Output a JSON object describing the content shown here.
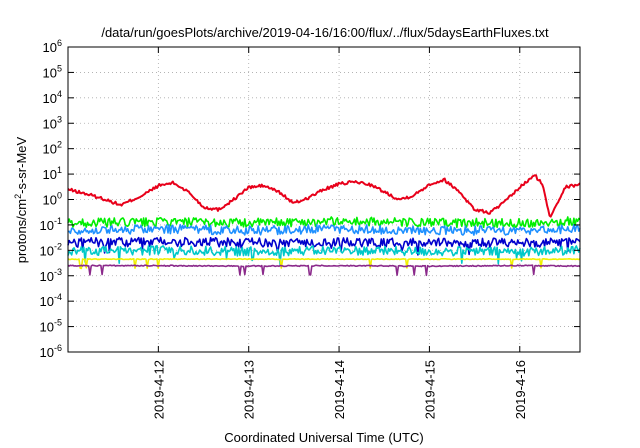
{
  "chart_data": {
    "type": "line",
    "title": "/data/run/goesPlots/archive/2019-04-16/16:00/flux/../flux/5daysEarthFluxes.txt",
    "xlabel": "Coordinated Universal Time (UTC)",
    "ylabel": {
      "pre": "protons/cm",
      "sup": "2",
      "post": "-s-sr-MeV"
    },
    "xlim": [
      "2019-04-11 00:00",
      "2019-04-16 16:00"
    ],
    "x_ticks": [
      "2019-4-12",
      "2019-4-13",
      "2019-4-14",
      "2019-4-15",
      "2019-4-16"
    ],
    "y_scale": "log",
    "ylim": [
      1e-06,
      1000000.0
    ],
    "y_tick_exponents": [
      -6,
      -5,
      -4,
      -3,
      -2,
      -1,
      0,
      1,
      2,
      3,
      4,
      5,
      6
    ],
    "y_tick_base": "10",
    "grid": true,
    "series": [
      {
        "color": "#e8001a",
        "x": [
          "04-11 00:00",
          "04-11 06:00",
          "04-11 10:00",
          "04-11 14:00",
          "04-11 20:00",
          "04-12 00:00",
          "04-12 04:00",
          "04-12 08:00",
          "04-12 12:00",
          "04-12 16:00",
          "04-12 20:00",
          "04-13 00:00",
          "04-13 04:00",
          "04-13 08:00",
          "04-13 12:00",
          "04-13 16:00",
          "04-13 20:00",
          "04-14 00:00",
          "04-14 04:00",
          "04-14 08:00",
          "04-14 12:00",
          "04-14 16:00",
          "04-14 20:00",
          "04-15 00:00",
          "04-15 04:00",
          "04-15 08:00",
          "04-15 12:00",
          "04-15 16:00",
          "04-15 20:00",
          "04-16 00:00",
          "04-16 04:00",
          "04-16 06:00",
          "04-16 08:00",
          "04-16 12:00",
          "04-16 16:00"
        ],
        "y": [
          2.5,
          1.5,
          1.0,
          0.6,
          1.5,
          3.5,
          4.5,
          2.0,
          0.5,
          0.4,
          1.0,
          3.0,
          3.5,
          2.0,
          0.7,
          1.2,
          2.5,
          4.0,
          5.0,
          4.0,
          2.0,
          1.0,
          1.5,
          4.0,
          6.0,
          2.0,
          0.4,
          0.3,
          0.8,
          3.0,
          9.0,
          4.0,
          0.2,
          3.0,
          4.0
        ]
      },
      {
        "color": "#00ee00",
        "x": [
          "04-11 00:00",
          "04-12 00:00",
          "04-13 00:00",
          "04-14 00:00",
          "04-15 00:00",
          "04-16 00:00",
          "04-16 16:00"
        ],
        "y": [
          0.12,
          0.13,
          0.12,
          0.14,
          0.12,
          0.12,
          0.14
        ]
      },
      {
        "color": "#1e90ff",
        "x": [
          "04-11 00:00",
          "04-12 00:00",
          "04-13 00:00",
          "04-14 00:00",
          "04-15 00:00",
          "04-16 00:00",
          "04-16 16:00"
        ],
        "y": [
          0.06,
          0.07,
          0.06,
          0.07,
          0.06,
          0.06,
          0.07
        ]
      },
      {
        "color": "#0000cc",
        "x": [
          "04-11 00:00",
          "04-12 00:00",
          "04-13 00:00",
          "04-14 00:00",
          "04-15 00:00",
          "04-16 00:00",
          "04-16 16:00"
        ],
        "y": [
          0.02,
          0.022,
          0.02,
          0.021,
          0.02,
          0.02,
          0.021
        ]
      },
      {
        "color": "#00c8c8",
        "x": [
          "04-11 00:00",
          "04-12 00:00",
          "04-13 00:00",
          "04-14 00:00",
          "04-15 00:00",
          "04-16 00:00",
          "04-16 16:00"
        ],
        "y": [
          0.009,
          0.01,
          0.009,
          0.01,
          0.009,
          0.009,
          0.01
        ]
      },
      {
        "color": "#f0f000",
        "x": [
          "04-11 00:00",
          "04-12 00:00",
          "04-13 00:00",
          "04-14 00:00",
          "04-15 00:00",
          "04-16 00:00",
          "04-16 16:00"
        ],
        "y": [
          0.0045,
          0.0045,
          0.0045,
          0.0045,
          0.0045,
          0.0045,
          0.0045
        ]
      },
      {
        "color": "#8b2a8b",
        "x": [
          "04-11 00:00",
          "04-12 00:00",
          "04-13 00:00",
          "04-14 00:00",
          "04-15 00:00",
          "04-16 00:00",
          "04-16 16:00"
        ],
        "y": [
          0.0025,
          0.0025,
          0.0024,
          0.0025,
          0.0024,
          0.0025,
          0.0024
        ]
      }
    ]
  }
}
